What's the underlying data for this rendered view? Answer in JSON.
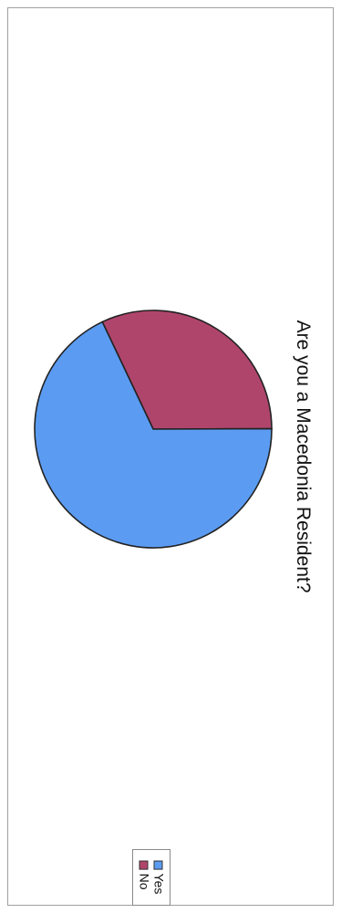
{
  "chart_data": {
    "type": "pie",
    "title": "Are you a Macedonia Resident?",
    "categories": [
      "Yes",
      "No"
    ],
    "values": [
      68,
      32
    ],
    "colors": [
      "#5b9cf2",
      "#b0456c"
    ],
    "legend_position": "bottom"
  }
}
